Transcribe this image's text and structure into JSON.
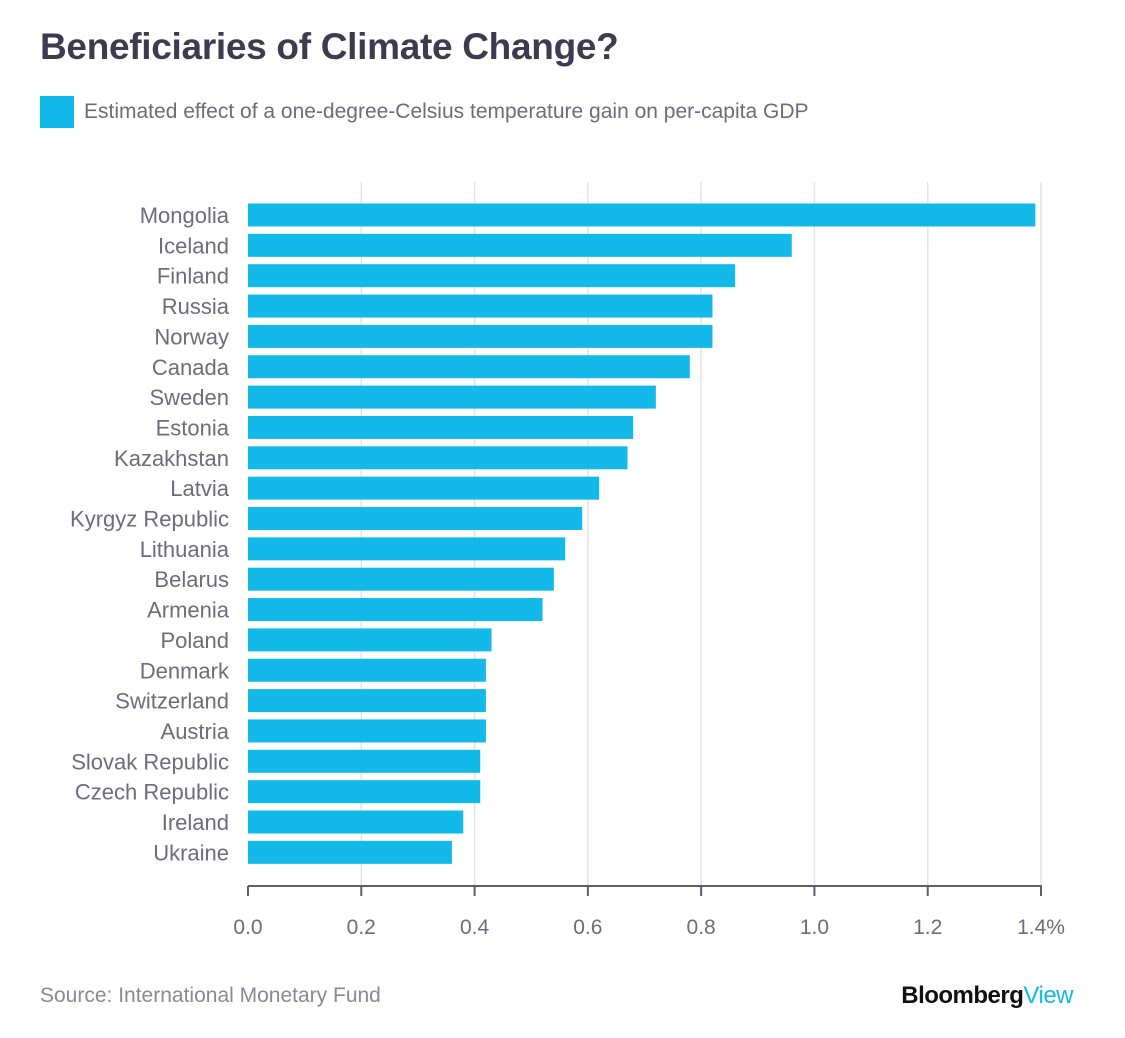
{
  "title": "Beneficiaries of Climate Change?",
  "legend": {
    "label": "Estimated effect of a one-degree-Celsius temperature gain on per-capita GDP",
    "color": "#13b9e8"
  },
  "source": "Source: International Monetary Fund",
  "brand": {
    "part1": "Bloomberg",
    "part2": "View"
  },
  "colors": {
    "bar": "#13b9e8",
    "axis": "#5f5d70",
    "grid": "#e4e3ea",
    "label": "#6d6b7d"
  },
  "chart_data": {
    "type": "bar",
    "orientation": "horizontal",
    "xlim": [
      0,
      1.4
    ],
    "ticks": [
      "0.0",
      "0.2",
      "0.4",
      "0.6",
      "0.8",
      "1.0",
      "1.2",
      "1.4%"
    ],
    "tick_values": [
      0,
      0.2,
      0.4,
      0.6,
      0.8,
      1.0,
      1.2,
      1.4
    ],
    "grid": true,
    "series": [
      {
        "name": "Estimated effect of a one-degree-Celsius temperature gain on per-capita GDP",
        "values": [
          1.39,
          0.96,
          0.86,
          0.82,
          0.82,
          0.78,
          0.72,
          0.68,
          0.67,
          0.62,
          0.59,
          0.56,
          0.54,
          0.52,
          0.43,
          0.42,
          0.42,
          0.42,
          0.41,
          0.41,
          0.38,
          0.36
        ]
      }
    ],
    "categories": [
      "Mongolia",
      "Iceland",
      "Finland",
      "Russia",
      "Norway",
      "Canada",
      "Sweden",
      "Estonia",
      "Kazakhstan",
      "Latvia",
      "Kyrgyz Republic",
      "Lithuania",
      "Belarus",
      "Armenia",
      "Poland",
      "Denmark",
      "Switzerland",
      "Austria",
      "Slovak Republic",
      "Czech Republic",
      "Ireland",
      "Ukraine"
    ]
  }
}
